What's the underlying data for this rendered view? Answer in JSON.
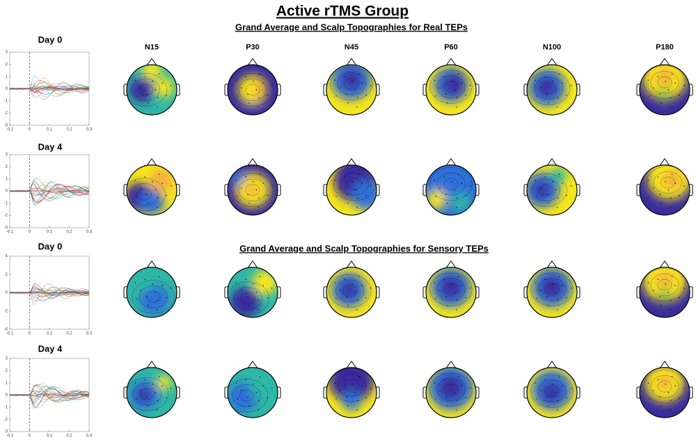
{
  "title": "Active rTMS Group",
  "components": [
    "N15",
    "P30",
    "N45",
    "P60",
    "N100",
    "P180"
  ],
  "xticks": [
    -0.1,
    0,
    0.1,
    0.2,
    0.3
  ],
  "sections": [
    {
      "subtitle": "Grand Average and Scalp Topographies for Real TEPs",
      "rows": [
        {
          "label": "Day 0",
          "yticks": [
            3,
            2,
            1,
            0,
            -1,
            -2,
            -3
          ]
        },
        {
          "label": "Day 4",
          "yticks": [
            3,
            2,
            1,
            0,
            -1,
            -2,
            -3
          ]
        }
      ]
    },
    {
      "subtitle": "Grand Average and Scalp Topographies for Sensory TEPs",
      "rows": [
        {
          "label": "Day 0",
          "yticks": [
            4,
            2,
            0,
            -2,
            -4
          ]
        },
        {
          "label": "Day 4",
          "yticks": [
            3,
            2,
            1,
            0,
            -1,
            -2,
            -3
          ]
        }
      ]
    }
  ]
}
